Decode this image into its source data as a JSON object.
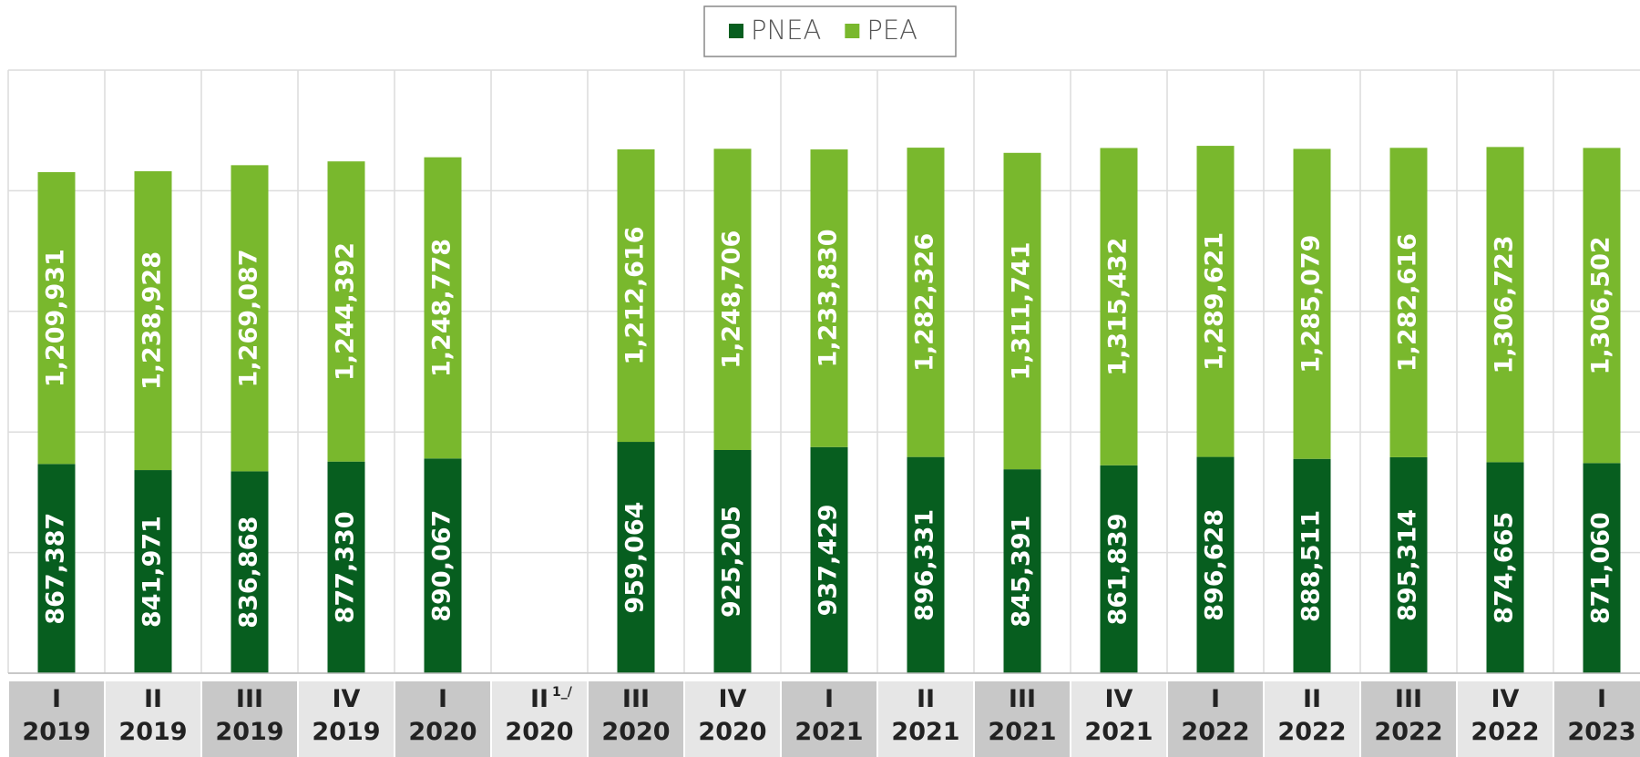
{
  "chart_data": {
    "type": "stacked_bar",
    "categories": [
      "I\n2019",
      "II\n2019",
      "III\n2019",
      "IV\n2019",
      "I\n2020",
      "II\n2020",
      "III\n2020",
      "IV\n2020",
      "I\n2021",
      "II\n2021",
      "III\n2021",
      "IV\n2021",
      "I\n2022",
      "II\n2022",
      "III\n2022",
      "IV\n2022",
      "I\n2023"
    ],
    "category_notes": [
      null,
      null,
      null,
      null,
      null,
      "1_/",
      null,
      null,
      null,
      null,
      null,
      null,
      null,
      null,
      null,
      null,
      null
    ],
    "series": [
      {
        "name": "PNEA",
        "color": "#075e1f",
        "values": [
          867387,
          841971,
          836868,
          877330,
          890067,
          null,
          959064,
          925205,
          937429,
          896331,
          845391,
          861839,
          896628,
          888511,
          895314,
          874665,
          871060
        ],
        "value_labels": [
          "867,387",
          "841,971",
          "836,868",
          "877,330",
          "890,067",
          null,
          "959,064",
          "925,205",
          "937,429",
          "896,331",
          "845,391",
          "861,839",
          "896,628",
          "888,511",
          "895,314",
          "874,665",
          "871,060"
        ]
      },
      {
        "name": "PEA",
        "color": "#79b82d",
        "values": [
          1209931,
          1238928,
          1269087,
          1244392,
          1248778,
          null,
          1212616,
          1248706,
          1233830,
          1282326,
          1311741,
          1315432,
          1289621,
          1285079,
          1282616,
          1306723,
          1306502
        ],
        "value_labels": [
          "1,209,931",
          "1,238,928",
          "1,269,087",
          "1,244,392",
          "1,248,778",
          null,
          "1,212,616",
          "1,248,706",
          "1,233,830",
          "1,282,326",
          "1,311,741",
          "1,315,432",
          "1,289,621",
          "1,285,079",
          "1,282,616",
          "1,306,723",
          "1,306,502"
        ]
      }
    ],
    "ylim": [
      0,
      2500000
    ],
    "yticks": [
      0,
      500000,
      1000000,
      1500000,
      2000000,
      2500000
    ],
    "grid": true
  }
}
